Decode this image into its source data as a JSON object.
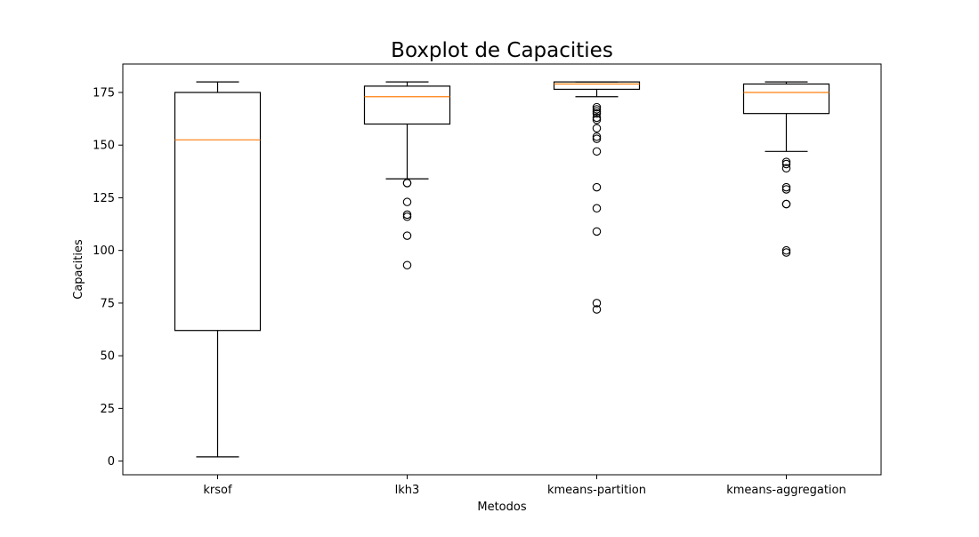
{
  "chart_data": {
    "type": "boxplot",
    "title": "Boxplot de Capacities",
    "xlabel": "Metodos",
    "ylabel": "Capacities",
    "ylim": [
      -6.5,
      188.5
    ],
    "yticks": [
      0,
      25,
      50,
      75,
      100,
      125,
      150,
      175
    ],
    "grid": false,
    "categories": [
      "krsof",
      "lkh3",
      "kmeans-partition",
      "kmeans-aggregation"
    ],
    "boxes": [
      {
        "category": "krsof",
        "whisker_low": 2,
        "q1": 62,
        "median": 152.5,
        "q3": 175,
        "whisker_high": 180,
        "outliers": []
      },
      {
        "category": "lkh3",
        "whisker_low": 134,
        "q1": 160,
        "median": 173,
        "q3": 178,
        "whisker_high": 180,
        "outliers": [
          132,
          132,
          123,
          117,
          116,
          107,
          93
        ]
      },
      {
        "category": "kmeans-partition",
        "whisker_low": 173,
        "q1": 176.5,
        "median": 179,
        "q3": 180,
        "whisker_high": 180,
        "outliers": [
          168,
          167,
          166,
          165,
          163,
          162,
          158,
          154,
          153,
          147,
          130,
          120,
          109,
          75,
          72
        ]
      },
      {
        "category": "kmeans-aggregation",
        "whisker_low": 147,
        "q1": 165,
        "median": 175,
        "q3": 179,
        "whisker_high": 180,
        "outliers": [
          142,
          141,
          139,
          130,
          129,
          122,
          122,
          100,
          99
        ]
      }
    ],
    "colors": {
      "box": "#000000",
      "median": "#ff7f0e",
      "outlier_edge": "#000000"
    }
  }
}
